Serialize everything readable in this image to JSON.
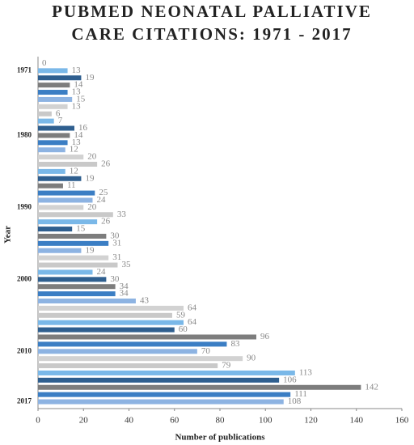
{
  "chart_data": {
    "type": "bar",
    "orientation": "horizontal",
    "title": [
      "PUBMED NEONATAL PALLIATIVE",
      "CARE CITATIONS: 1971 - 2017"
    ],
    "x_label": "Number of publications",
    "y_label": "Year",
    "categories": [
      null,
      "1971",
      null,
      null,
      null,
      null,
      null,
      null,
      null,
      null,
      "1980",
      null,
      null,
      null,
      null,
      null,
      null,
      null,
      null,
      null,
      "1990",
      null,
      null,
      null,
      null,
      null,
      null,
      null,
      null,
      null,
      "2000",
      null,
      null,
      null,
      null,
      null,
      null,
      null,
      null,
      null,
      "2010",
      null,
      null,
      null,
      null,
      null,
      null,
      "2017"
    ],
    "values": [
      0,
      13,
      19,
      14,
      13,
      15,
      13,
      6,
      7,
      16,
      14,
      13,
      12,
      20,
      26,
      12,
      19,
      11,
      25,
      24,
      20,
      33,
      26,
      15,
      30,
      31,
      19,
      31,
      35,
      24,
      30,
      34,
      34,
      43,
      64,
      59,
      64,
      60,
      96,
      83,
      70,
      90,
      79,
      113,
      106,
      142,
      111,
      108
    ],
    "colors": [
      "#c9c9c9",
      "#7ab8e8",
      "#2f5f8f",
      "#7d7d7d",
      "#3b7ec4",
      "#8db3e2",
      "#d2d2d2"
    ],
    "xlim": [
      0,
      160
    ],
    "xticks": [
      0,
      20,
      40,
      60,
      80,
      100,
      120,
      140,
      160
    ],
    "grid": false
  }
}
